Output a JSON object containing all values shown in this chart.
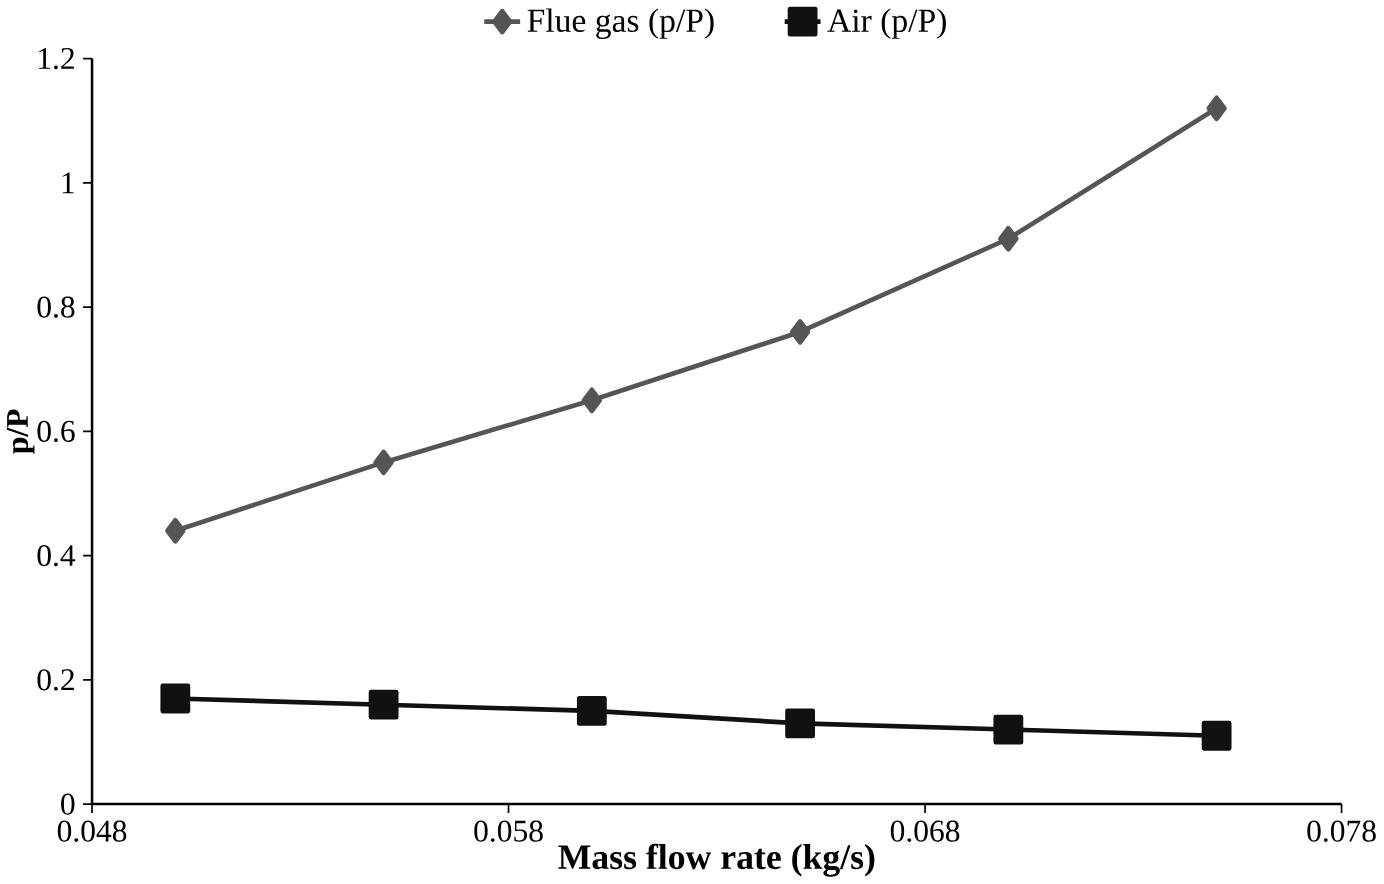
{
  "chart_data": {
    "type": "line",
    "xlabel": "Mass flow rate (kg/s)",
    "ylabel": "p/P",
    "x": [
      0.05,
      0.055,
      0.06,
      0.065,
      0.07,
      0.075
    ],
    "series": [
      {
        "name": "Flue gas (p/P)",
        "color": "#555555",
        "marker": "diamond",
        "values": [
          0.44,
          0.55,
          0.65,
          0.76,
          0.91,
          1.12
        ]
      },
      {
        "name": "Air (p/P)",
        "color": "#111111",
        "marker": "square",
        "values": [
          0.17,
          0.16,
          0.15,
          0.13,
          0.12,
          0.11
        ]
      }
    ],
    "xlim": [
      0.048,
      0.078
    ],
    "xticks": [
      0.048,
      0.058,
      0.068,
      0.078
    ],
    "ylim": [
      0,
      1.2
    ],
    "yticks": [
      0,
      0.2,
      0.4,
      0.6,
      0.8,
      1,
      1.2
    ],
    "grid": false,
    "legend": "top",
    "line_style": "solid"
  }
}
